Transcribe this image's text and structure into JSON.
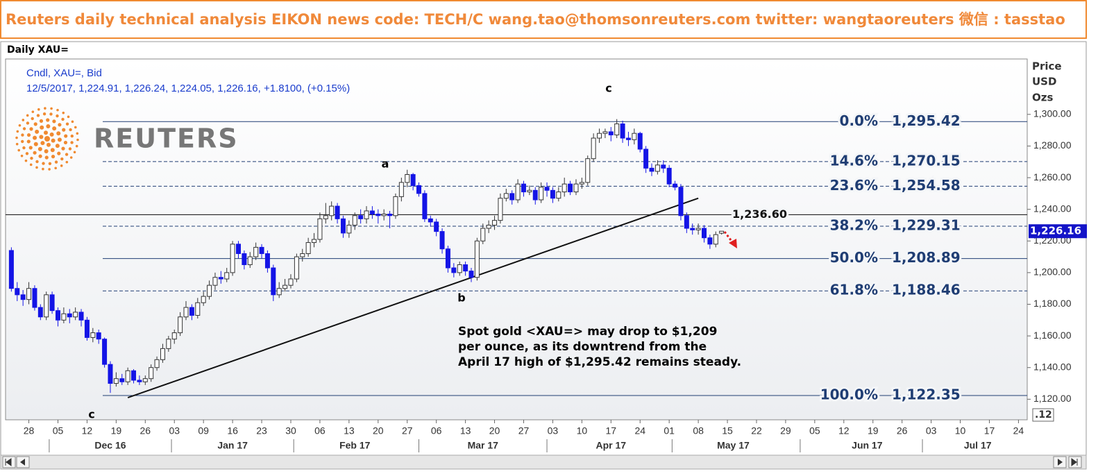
{
  "header": {
    "text": "Reuters daily technical analysis  EIKON news code: TECH/C  wang.tao@thomsonreuters.com  twitter:  wangtaoreuters   微信 : tasstao"
  },
  "chart_data": {
    "type": "candlestick",
    "title": "Daily XAU=",
    "legend_lines": [
      "Cndl, XAU=, Bid",
      "12/5/2017, 1,224.91, 1,226.24, 1,224.05, 1,226.16, +1.8100, (+0.15%)"
    ],
    "logo_text": "REUTERS",
    "y_label": [
      "Price",
      "USD",
      "Ozs"
    ],
    "up_color": "#ffffff",
    "down_color": "#1414e6",
    "x": [
      -3,
      -2,
      -1,
      0,
      1,
      2,
      3,
      4,
      5,
      6,
      7,
      8,
      9,
      10,
      11,
      12,
      13,
      14,
      15,
      16,
      17,
      18,
      19,
      20,
      21,
      22,
      23,
      24,
      25,
      26,
      27,
      28,
      29,
      30,
      31,
      32,
      33,
      34,
      35,
      36,
      37,
      38,
      39,
      40,
      41,
      42,
      43,
      44,
      45,
      46,
      47,
      48,
      49,
      50,
      51,
      52,
      53,
      54,
      55,
      56,
      57,
      58,
      59,
      60,
      61,
      62,
      63,
      64,
      65,
      66,
      67,
      68,
      69,
      70,
      71,
      72,
      73,
      74,
      75,
      76,
      77,
      78,
      79,
      80,
      81,
      82,
      83,
      84,
      85,
      86,
      87,
      88,
      89,
      90,
      91,
      92,
      93,
      94,
      95,
      96,
      97,
      98,
      99,
      100,
      101,
      102,
      103,
      104,
      105,
      106,
      107,
      108,
      109,
      110,
      111,
      112,
      113,
      114,
      115,
      116,
      117,
      118,
      119
    ],
    "open": [
      1214,
      1190,
      1186,
      1183,
      1190,
      1178,
      1172,
      1186,
      1176,
      1170,
      1174,
      1172,
      1175,
      1170,
      1159,
      1162,
      1158,
      1142,
      1130,
      1133,
      1131,
      1138,
      1132,
      1131,
      1133,
      1140,
      1145,
      1152,
      1158,
      1162,
      1172,
      1178,
      1173,
      1181,
      1185,
      1192,
      1197,
      1196,
      1200,
      1218,
      1212,
      1205,
      1210,
      1216,
      1212,
      1203,
      1186,
      1190,
      1192,
      1196,
      1210,
      1212,
      1219,
      1221,
      1234,
      1236,
      1242,
      1234,
      1225,
      1230,
      1236,
      1234,
      1239,
      1237,
      1236,
      1237,
      1236,
      1248,
      1257,
      1262,
      1255,
      1250,
      1234,
      1232,
      1226,
      1215,
      1203,
      1200,
      1205,
      1201,
      1197,
      1220,
      1228,
      1230,
      1233,
      1247,
      1250,
      1246,
      1256,
      1251,
      1252,
      1246,
      1254,
      1252,
      1247,
      1251,
      1256,
      1251,
      1256,
      1257,
      1272,
      1285,
      1288,
      1289,
      1287,
      1294,
      1285,
      1284,
      1288,
      1278,
      1266,
      1264,
      1268,
      1266,
      1256,
      1254,
      1236,
      1228,
      1227,
      1228,
      1222,
      1218,
      1224.91
    ],
    "high": [
      1216,
      1194,
      1189,
      1194,
      1192,
      1180,
      1188,
      1188,
      1178,
      1178,
      1177,
      1178,
      1177,
      1172,
      1165,
      1164,
      1159,
      1144,
      1137,
      1136,
      1140,
      1139,
      1135,
      1135,
      1142,
      1147,
      1155,
      1160,
      1164,
      1175,
      1182,
      1180,
      1184,
      1188,
      1195,
      1200,
      1201,
      1203,
      1220,
      1220,
      1214,
      1213,
      1219,
      1218,
      1214,
      1205,
      1194,
      1196,
      1199,
      1212,
      1215,
      1222,
      1225,
      1238,
      1244,
      1245,
      1244,
      1236,
      1233,
      1238,
      1240,
      1242,
      1242,
      1240,
      1240,
      1239,
      1250,
      1260,
      1265,
      1263,
      1257,
      1252,
      1236,
      1234,
      1228,
      1217,
      1206,
      1207,
      1207,
      1203,
      1222,
      1231,
      1233,
      1236,
      1250,
      1253,
      1252,
      1259,
      1258,
      1255,
      1254,
      1257,
      1257,
      1254,
      1254,
      1260,
      1258,
      1259,
      1260,
      1274,
      1288,
      1291,
      1291,
      1292,
      1297,
      1296,
      1289,
      1291,
      1289,
      1280,
      1269,
      1271,
      1271,
      1268,
      1258,
      1256,
      1238,
      1231,
      1231,
      1230,
      1224,
      1226,
      1226.24
    ],
    "low": [
      1188,
      1182,
      1179,
      1180,
      1176,
      1170,
      1170,
      1174,
      1166,
      1168,
      1168,
      1170,
      1166,
      1157,
      1156,
      1155,
      1140,
      1124,
      1128,
      1129,
      1129,
      1130,
      1129,
      1129,
      1131,
      1138,
      1143,
      1150,
      1155,
      1160,
      1170,
      1170,
      1171,
      1179,
      1183,
      1189,
      1193,
      1194,
      1198,
      1209,
      1202,
      1203,
      1208,
      1209,
      1200,
      1182,
      1184,
      1188,
      1190,
      1194,
      1207,
      1210,
      1216,
      1219,
      1231,
      1233,
      1231,
      1222,
      1222,
      1227,
      1231,
      1231,
      1234,
      1231,
      1233,
      1228,
      1234,
      1245,
      1254,
      1252,
      1248,
      1232,
      1229,
      1223,
      1212,
      1200,
      1197,
      1198,
      1198,
      1194,
      1195,
      1218,
      1225,
      1227,
      1231,
      1245,
      1243,
      1244,
      1248,
      1249,
      1243,
      1244,
      1248,
      1244,
      1245,
      1248,
      1249,
      1249,
      1253,
      1255,
      1270,
      1282,
      1285,
      1283,
      1285,
      1282,
      1280,
      1281,
      1276,
      1263,
      1261,
      1262,
      1263,
      1254,
      1252,
      1233,
      1225,
      1224,
      1224,
      1219,
      1215,
      1216,
      1224.05
    ],
    "close": [
      1190,
      1186,
      1183,
      1190,
      1178,
      1172,
      1186,
      1176,
      1170,
      1174,
      1172,
      1175,
      1170,
      1159,
      1162,
      1158,
      1142,
      1130,
      1133,
      1131,
      1138,
      1132,
      1131,
      1133,
      1140,
      1145,
      1152,
      1158,
      1162,
      1172,
      1178,
      1173,
      1181,
      1185,
      1192,
      1197,
      1196,
      1200,
      1218,
      1212,
      1205,
      1210,
      1216,
      1212,
      1203,
      1186,
      1190,
      1192,
      1196,
      1210,
      1212,
      1219,
      1221,
      1234,
      1236,
      1242,
      1234,
      1225,
      1230,
      1236,
      1234,
      1239,
      1237,
      1236,
      1237,
      1236,
      1248,
      1257,
      1262,
      1255,
      1250,
      1234,
      1232,
      1226,
      1215,
      1203,
      1200,
      1205,
      1201,
      1197,
      1220,
      1228,
      1230,
      1233,
      1247,
      1250,
      1246,
      1256,
      1251,
      1252,
      1246,
      1254,
      1252,
      1247,
      1251,
      1256,
      1251,
      1256,
      1257,
      1272,
      1285,
      1288,
      1289,
      1287,
      1294,
      1285,
      1284,
      1288,
      1278,
      1266,
      1264,
      1268,
      1266,
      1256,
      1254,
      1236,
      1228,
      1227,
      1228,
      1222,
      1218,
      1224,
      1226.16
    ],
    "xlim": [
      -4,
      171.5
    ],
    "xticks": [
      {
        "value": 0,
        "label": "28"
      },
      {
        "value": 5,
        "label": "05"
      },
      {
        "value": 10,
        "label": "12"
      },
      {
        "value": 15,
        "label": "19"
      },
      {
        "value": 20,
        "label": "26"
      },
      {
        "value": 25,
        "label": "03"
      },
      {
        "value": 30,
        "label": "09"
      },
      {
        "value": 35,
        "label": "16"
      },
      {
        "value": 40,
        "label": "23"
      },
      {
        "value": 45,
        "label": "30"
      },
      {
        "value": 50,
        "label": "06"
      },
      {
        "value": 55,
        "label": "13"
      },
      {
        "value": 60,
        "label": "20"
      },
      {
        "value": 65,
        "label": "27"
      },
      {
        "value": 70,
        "label": "06"
      },
      {
        "value": 75,
        "label": "13"
      },
      {
        "value": 80,
        "label": "20"
      },
      {
        "value": 85,
        "label": "27"
      },
      {
        "value": 90,
        "label": "03"
      },
      {
        "value": 95,
        "label": "10"
      },
      {
        "value": 100,
        "label": "17"
      },
      {
        "value": 105,
        "label": "24"
      },
      {
        "value": 110,
        "label": "01"
      },
      {
        "value": 115,
        "label": "08"
      },
      {
        "value": 120,
        "label": "15"
      },
      {
        "value": 125,
        "label": "22"
      },
      {
        "value": 130,
        "label": "29"
      },
      {
        "value": 135,
        "label": "05"
      },
      {
        "value": 140,
        "label": "12"
      },
      {
        "value": 145,
        "label": "19"
      },
      {
        "value": 150,
        "label": "26"
      },
      {
        "value": 155,
        "label": "03"
      },
      {
        "value": 160,
        "label": "10"
      },
      {
        "value": 165,
        "label": "17"
      },
      {
        "value": 170,
        "label": "24"
      }
    ],
    "x_months": [
      {
        "value": 14,
        "label": "Dec 16"
      },
      {
        "value": 35,
        "label": "Jan 17"
      },
      {
        "value": 56,
        "label": "Feb 17"
      },
      {
        "value": 78,
        "label": "Mar 17"
      },
      {
        "value": 100,
        "label": "Apr 17"
      },
      {
        "value": 121,
        "label": "May 17"
      },
      {
        "value": 144,
        "label": "Jun 17"
      },
      {
        "value": 163,
        "label": "Jul 17"
      }
    ],
    "ylim": [
      1107,
      1335
    ],
    "yticks": [
      {
        "value": 1120,
        "label": "1,120.00"
      },
      {
        "value": 1140,
        "label": "1,140.00"
      },
      {
        "value": 1160,
        "label": "1,160.00"
      },
      {
        "value": 1180,
        "label": "1,180.00"
      },
      {
        "value": 1200,
        "label": "1,200.00"
      },
      {
        "value": 1220,
        "label": "1,220.00"
      },
      {
        "value": 1240,
        "label": "1,240.00"
      },
      {
        "value": 1260,
        "label": "1,260.00"
      },
      {
        "value": 1280,
        "label": "1,280.00"
      },
      {
        "value": 1300,
        "label": "1,300.00"
      }
    ],
    "grid": false,
    "fib_levels": [
      {
        "ratio": "0.0%",
        "value": 1295.42,
        "label": "1,295.42",
        "style": "solid"
      },
      {
        "ratio": "14.6%",
        "value": 1270.15,
        "label": "1,270.15",
        "style": "dashed"
      },
      {
        "ratio": "23.6%",
        "value": 1254.58,
        "label": "1,254.58",
        "style": "dashed"
      },
      {
        "ratio": "38.2%",
        "value": 1229.31,
        "label": "1,229.31",
        "style": "dashed"
      },
      {
        "ratio": "50.0%",
        "value": 1208.89,
        "label": "1,208.89",
        "style": "solid"
      },
      {
        "ratio": "61.8%",
        "value": 1188.46,
        "label": "1,188.46",
        "style": "dashed"
      },
      {
        "ratio": "100.0%",
        "value": 1122.35,
        "label": "1,122.35",
        "style": "solid"
      }
    ],
    "hline": {
      "value": 1236.6,
      "label": "1,236.60"
    },
    "trendline": {
      "x": [
        17,
        115
      ],
      "y": [
        1121,
        1247
      ]
    },
    "last_price": {
      "value": 1226.16,
      "label": "1,226.16"
    },
    "annotations": [
      "c",
      "a",
      "b",
      "c"
    ],
    "comment": [
      "Spot gold <XAU=> may drop to $1,209",
      "per ounce, as its downtrend from the",
      "April 17 high of $1,295.42  remains steady."
    ],
    "corner_label": ".12"
  }
}
